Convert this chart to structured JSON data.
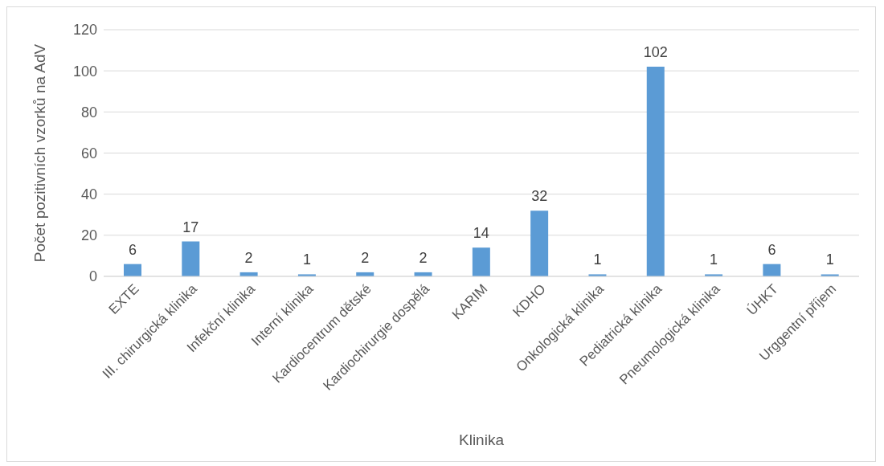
{
  "chart_data": {
    "type": "bar",
    "xlabel": "Klinika",
    "ylabel": "Počet pozitivních vzorků na AdV",
    "categories": [
      "EXTE",
      "III. chirurgická klinika",
      "Infekční klinika",
      "Interní klinika",
      "Kardiocentrum dětské",
      "Kardiochirurgie dospělá",
      "KARIM",
      "KDHO",
      "Onkologická klinika",
      "Pediatrická klinika",
      "Pneumologická klinika",
      "ÚHKT",
      "Urggentní příjem"
    ],
    "values": [
      6,
      17,
      2,
      1,
      2,
      2,
      14,
      32,
      1,
      102,
      1,
      6,
      1
    ],
    "color": "#5b9bd5",
    "ylim": [
      0,
      120
    ],
    "yticks": [
      0,
      20,
      40,
      60,
      80,
      100,
      120
    ],
    "grid": "y",
    "data_labels": true
  }
}
